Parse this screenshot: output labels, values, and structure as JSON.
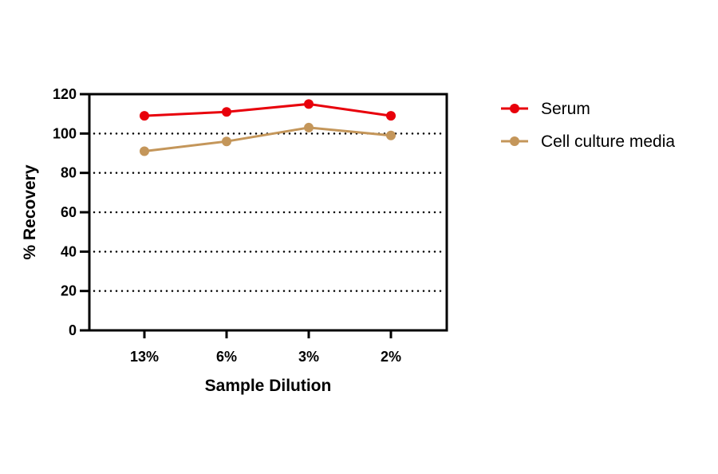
{
  "chart_data": {
    "type": "line",
    "title": "",
    "xlabel": "Sample Dilution",
    "ylabel": "% Recovery",
    "categories": [
      "13%",
      "6%",
      "3%",
      "2%"
    ],
    "ylim": [
      0,
      120
    ],
    "yticks": [
      0,
      20,
      40,
      60,
      80,
      100,
      120
    ],
    "grid": "horizontal dotted",
    "legend": "right",
    "series": [
      {
        "name": "Serum",
        "color": "#e8000b",
        "values": [
          109,
          111,
          115,
          109
        ]
      },
      {
        "name": "Cell culture media",
        "color": "#c4965a",
        "values": [
          91,
          96,
          103,
          99
        ]
      }
    ]
  }
}
